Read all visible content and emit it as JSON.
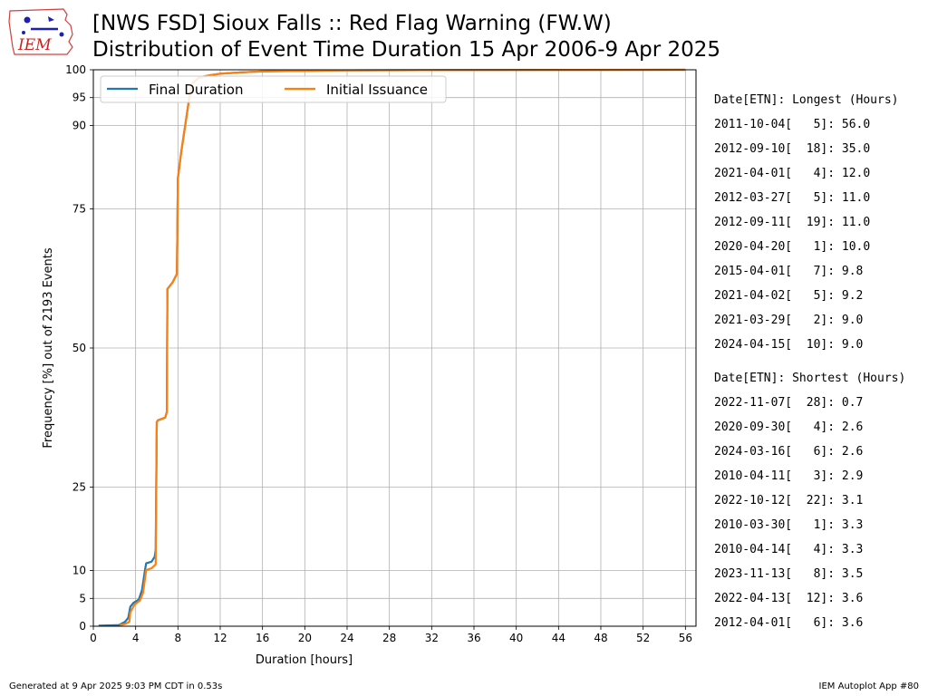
{
  "header": {
    "logo_text": "IEM",
    "title_line1": "[NWS FSD] Sioux Falls :: Red Flag Warning (FW.W)",
    "title_line2": "Distribution of Event Time Duration 15 Apr 2006-9 Apr 2025"
  },
  "chart_data": {
    "type": "line",
    "xlabel": "Duration [hours]",
    "ylabel": "Frequency [%] out of 2193 Events",
    "xlim": [
      0,
      57
    ],
    "ylim": [
      0,
      100
    ],
    "xticks": [
      "0",
      "4",
      "8",
      "12",
      "16",
      "20",
      "24",
      "28",
      "32",
      "36",
      "40",
      "44",
      "48",
      "52",
      "56"
    ],
    "yticks": [
      "0",
      "5",
      "10",
      "25",
      "50",
      "75",
      "90",
      "95",
      "100"
    ],
    "grid": true,
    "legend": "upper-left",
    "series": [
      {
        "name": "Final Duration",
        "color": "#1f77b4",
        "x": [
          0.5,
          2.4,
          3.0,
          3.3,
          3.5,
          3.8,
          4.3,
          4.6,
          4.9,
          5.0,
          5.5,
          5.8,
          5.9,
          6.0,
          6.1,
          6.8,
          6.95,
          7.0,
          7.5,
          7.9,
          8.0,
          8.3,
          9.0,
          9.3,
          10.0,
          11.0,
          12.0,
          14.0,
          16.0,
          20.0,
          24.0,
          35.0,
          56.0
        ],
        "y": [
          0.1,
          0.2,
          0.8,
          1.5,
          3.5,
          4.2,
          4.8,
          6.5,
          10.3,
          11.3,
          11.6,
          12.5,
          13.8,
          36.7,
          37.0,
          37.5,
          38.5,
          60.6,
          61.8,
          63.3,
          80.5,
          85.0,
          94.0,
          97.5,
          98.6,
          99.0,
          99.3,
          99.55,
          99.7,
          99.8,
          99.9,
          99.95,
          100
        ]
      },
      {
        "name": "Initial Issuance",
        "color": "#ff7f0e",
        "x": [
          2.5,
          3.0,
          3.4,
          3.5,
          3.9,
          4.4,
          4.7,
          5.0,
          5.5,
          5.9,
          6.0,
          6.1,
          6.8,
          6.95,
          7.0,
          7.5,
          7.9,
          8.0,
          8.3,
          9.0,
          9.3,
          10.0,
          11.0,
          12.0,
          14.0,
          16.0,
          20.0,
          24.0,
          35.0,
          56.0
        ],
        "y": [
          0.2,
          0.4,
          0.8,
          2.5,
          3.9,
          4.6,
          6.0,
          10.1,
          10.4,
          11.1,
          36.7,
          37.0,
          37.5,
          38.5,
          60.6,
          61.8,
          63.3,
          80.5,
          85.0,
          94.0,
          97.5,
          98.6,
          99.0,
          99.3,
          99.55,
          99.7,
          99.8,
          99.9,
          99.95,
          100
        ]
      }
    ]
  },
  "side_panel": {
    "longest_header": "Date[ETN]: Longest (Hours)",
    "longest": [
      "2011-10-04[   5]: 56.0",
      "2012-09-10[  18]: 35.0",
      "2021-04-01[   4]: 12.0",
      "2012-03-27[   5]: 11.0",
      "2012-09-11[  19]: 11.0",
      "2020-04-20[   1]: 10.0",
      "2015-04-01[   7]: 9.8",
      "2021-04-02[   5]: 9.2",
      "2021-03-29[   2]: 9.0",
      "2024-04-15[  10]: 9.0"
    ],
    "shortest_header": "Date[ETN]: Shortest (Hours)",
    "shortest": [
      "2022-11-07[  28]: 0.7",
      "2020-09-30[   4]: 2.6",
      "2024-03-16[   6]: 2.6",
      "2010-04-11[   3]: 2.9",
      "2022-10-12[  22]: 3.1",
      "2010-03-30[   1]: 3.3",
      "2010-04-14[   4]: 3.3",
      "2023-11-13[   8]: 3.5",
      "2022-04-13[  12]: 3.6",
      "2012-04-01[   6]: 3.6"
    ]
  },
  "footer": {
    "left": "Generated at 9 Apr 2025 9:03 PM CDT in 0.53s",
    "right": "IEM Autoplot App #80"
  }
}
